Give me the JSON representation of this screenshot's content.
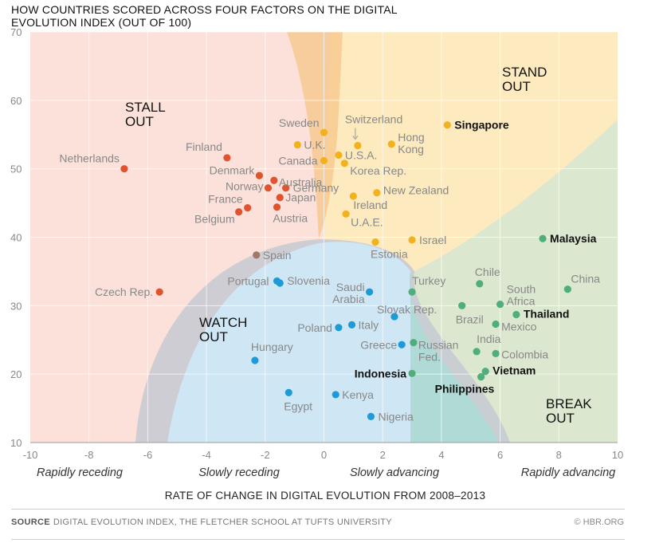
{
  "title": "HOW COUNTRIES SCORED ACROSS FOUR FACTORS ON THE DIGITAL EVOLUTION INDEX (OUT OF 100)",
  "source_label": "SOURCE",
  "source_text": "DIGITAL EVOLUTION INDEX, THE FLETCHER SCHOOL AT TUFTS UNIVERSITY",
  "credit": "© HBR.ORG",
  "colors": {
    "stall_out": "#e0532f",
    "stand_out": "#f2b21e",
    "watch_out": "#1e9ad6",
    "break_out": "#4fae7b",
    "spain": "#a3766a"
  },
  "chart_data": {
    "type": "scatter",
    "xlabel": "RATE OF CHANGE IN DIGITAL EVOLUTION FROM 2008–2013",
    "ylabel": "",
    "xlim": [
      -10,
      10
    ],
    "ylim": [
      10,
      70
    ],
    "x_ticks": [
      "-10",
      "-8",
      "-6",
      "-4",
      "-2",
      "0",
      "2",
      "4",
      "6",
      "8",
      "10"
    ],
    "y_ticks": [
      "10",
      "20",
      "30",
      "40",
      "50",
      "60",
      "70"
    ],
    "x_axis_descriptors": [
      "Rapidly receding",
      "Slowly receding",
      "Slowly advancing",
      "Rapidly advancing"
    ],
    "zones": [
      "STALL OUT",
      "STAND OUT",
      "WATCH OUT",
      "BREAK OUT"
    ],
    "grid": true,
    "points": [
      {
        "name": "Netherlands",
        "x": -6.8,
        "y": 50.0,
        "group": "stall_out",
        "bold": false
      },
      {
        "name": "Czech Rep.",
        "x": -5.6,
        "y": 32.0,
        "group": "stall_out",
        "bold": false
      },
      {
        "name": "Finland",
        "x": -3.3,
        "y": 51.6,
        "group": "stall_out",
        "bold": false
      },
      {
        "name": "Denmark",
        "x": -2.2,
        "y": 49.0,
        "group": "stall_out",
        "bold": false
      },
      {
        "name": "Norway",
        "x": -1.9,
        "y": 47.2,
        "group": "stall_out",
        "bold": false
      },
      {
        "name": "Australia",
        "x": -1.7,
        "y": 48.3,
        "group": "stall_out",
        "bold": false
      },
      {
        "name": "Germany",
        "x": -1.3,
        "y": 47.2,
        "group": "stall_out",
        "bold": false
      },
      {
        "name": "France",
        "x": -2.6,
        "y": 44.3,
        "group": "stall_out",
        "bold": false
      },
      {
        "name": "Belgium",
        "x": -2.9,
        "y": 43.7,
        "group": "stall_out",
        "bold": false
      },
      {
        "name": "Japan",
        "x": -1.5,
        "y": 45.8,
        "group": "stall_out",
        "bold": false
      },
      {
        "name": "Austria",
        "x": -1.6,
        "y": 44.4,
        "group": "stall_out",
        "bold": false
      },
      {
        "name": "Spain",
        "x": -2.3,
        "y": 37.4,
        "group": "spain",
        "bold": false
      },
      {
        "name": "Sweden",
        "x": 0.0,
        "y": 55.3,
        "group": "stand_out",
        "bold": false
      },
      {
        "name": "U.K.",
        "x": -0.9,
        "y": 53.5,
        "group": "stand_out",
        "bold": false
      },
      {
        "name": "Canada",
        "x": 0.0,
        "y": 51.2,
        "group": "stand_out",
        "bold": false
      },
      {
        "name": "U.S.A.",
        "x": 0.5,
        "y": 52.0,
        "group": "stand_out",
        "bold": false
      },
      {
        "name": "Switzerland",
        "x": 1.15,
        "y": 53.4,
        "group": "stand_out",
        "bold": false
      },
      {
        "name": "Hong Kong",
        "x": 2.3,
        "y": 53.6,
        "group": "stand_out",
        "bold": false
      },
      {
        "name": "Korea Rep.",
        "x": 0.7,
        "y": 50.8,
        "group": "stand_out",
        "bold": false
      },
      {
        "name": "Singapore",
        "x": 4.2,
        "y": 56.4,
        "group": "stand_out",
        "bold": true
      },
      {
        "name": "New Zealand",
        "x": 1.8,
        "y": 46.5,
        "group": "stand_out",
        "bold": false
      },
      {
        "name": "Ireland",
        "x": 1.0,
        "y": 46.0,
        "group": "stand_out",
        "bold": false
      },
      {
        "name": "U.A.E.",
        "x": 0.75,
        "y": 43.4,
        "group": "stand_out",
        "bold": false
      },
      {
        "name": "Israel",
        "x": 3.0,
        "y": 39.6,
        "group": "stand_out",
        "bold": false
      },
      {
        "name": "Estonia",
        "x": 1.75,
        "y": 39.3,
        "group": "stand_out",
        "bold": false
      },
      {
        "name": "Portugal",
        "x": -1.6,
        "y": 33.6,
        "group": "watch_out",
        "bold": false
      },
      {
        "name": "Slovenia",
        "x": -1.5,
        "y": 33.3,
        "group": "watch_out",
        "bold": false
      },
      {
        "name": "Saudi Arabia",
        "x": 1.55,
        "y": 32.0,
        "group": "watch_out",
        "bold": false
      },
      {
        "name": "Slovak Rep.",
        "x": 2.4,
        "y": 28.4,
        "group": "watch_out",
        "bold": false
      },
      {
        "name": "Poland",
        "x": 0.5,
        "y": 26.8,
        "group": "watch_out",
        "bold": false
      },
      {
        "name": "Italy",
        "x": 0.95,
        "y": 27.2,
        "group": "watch_out",
        "bold": false
      },
      {
        "name": "Greece",
        "x": 2.65,
        "y": 24.3,
        "group": "watch_out",
        "bold": false
      },
      {
        "name": "Hungary",
        "x": -2.35,
        "y": 22.0,
        "group": "watch_out",
        "bold": false
      },
      {
        "name": "Egypt",
        "x": -1.2,
        "y": 17.3,
        "group": "watch_out",
        "bold": false
      },
      {
        "name": "Kenya",
        "x": 0.4,
        "y": 17.0,
        "group": "watch_out",
        "bold": false
      },
      {
        "name": "Nigeria",
        "x": 1.6,
        "y": 13.8,
        "group": "watch_out",
        "bold": false
      },
      {
        "name": "Turkey",
        "x": 3.0,
        "y": 32.0,
        "group": "break_out",
        "bold": false
      },
      {
        "name": "Russian Fed.",
        "x": 3.05,
        "y": 24.6,
        "group": "break_out",
        "bold": false
      },
      {
        "name": "Indonesia",
        "x": 3.0,
        "y": 20.1,
        "group": "break_out",
        "bold": true
      },
      {
        "name": "Chile",
        "x": 5.3,
        "y": 33.2,
        "group": "break_out",
        "bold": false
      },
      {
        "name": "Brazil",
        "x": 4.7,
        "y": 30.0,
        "group": "break_out",
        "bold": false
      },
      {
        "name": "South Africa",
        "x": 6.0,
        "y": 30.2,
        "group": "break_out",
        "bold": false
      },
      {
        "name": "China",
        "x": 8.3,
        "y": 32.4,
        "group": "break_out",
        "bold": false
      },
      {
        "name": "Malaysia",
        "x": 7.45,
        "y": 39.8,
        "group": "break_out",
        "bold": true
      },
      {
        "name": "Thailand",
        "x": 6.55,
        "y": 28.7,
        "group": "break_out",
        "bold": true
      },
      {
        "name": "Mexico",
        "x": 5.85,
        "y": 27.3,
        "group": "break_out",
        "bold": false
      },
      {
        "name": "India",
        "x": 5.2,
        "y": 23.3,
        "group": "break_out",
        "bold": false
      },
      {
        "name": "Colombia",
        "x": 5.85,
        "y": 23.0,
        "group": "break_out",
        "bold": false
      },
      {
        "name": "Vietnam",
        "x": 5.5,
        "y": 20.4,
        "group": "break_out",
        "bold": true
      },
      {
        "name": "Philippines",
        "x": 5.35,
        "y": 19.6,
        "group": "break_out",
        "bold": true
      }
    ]
  }
}
